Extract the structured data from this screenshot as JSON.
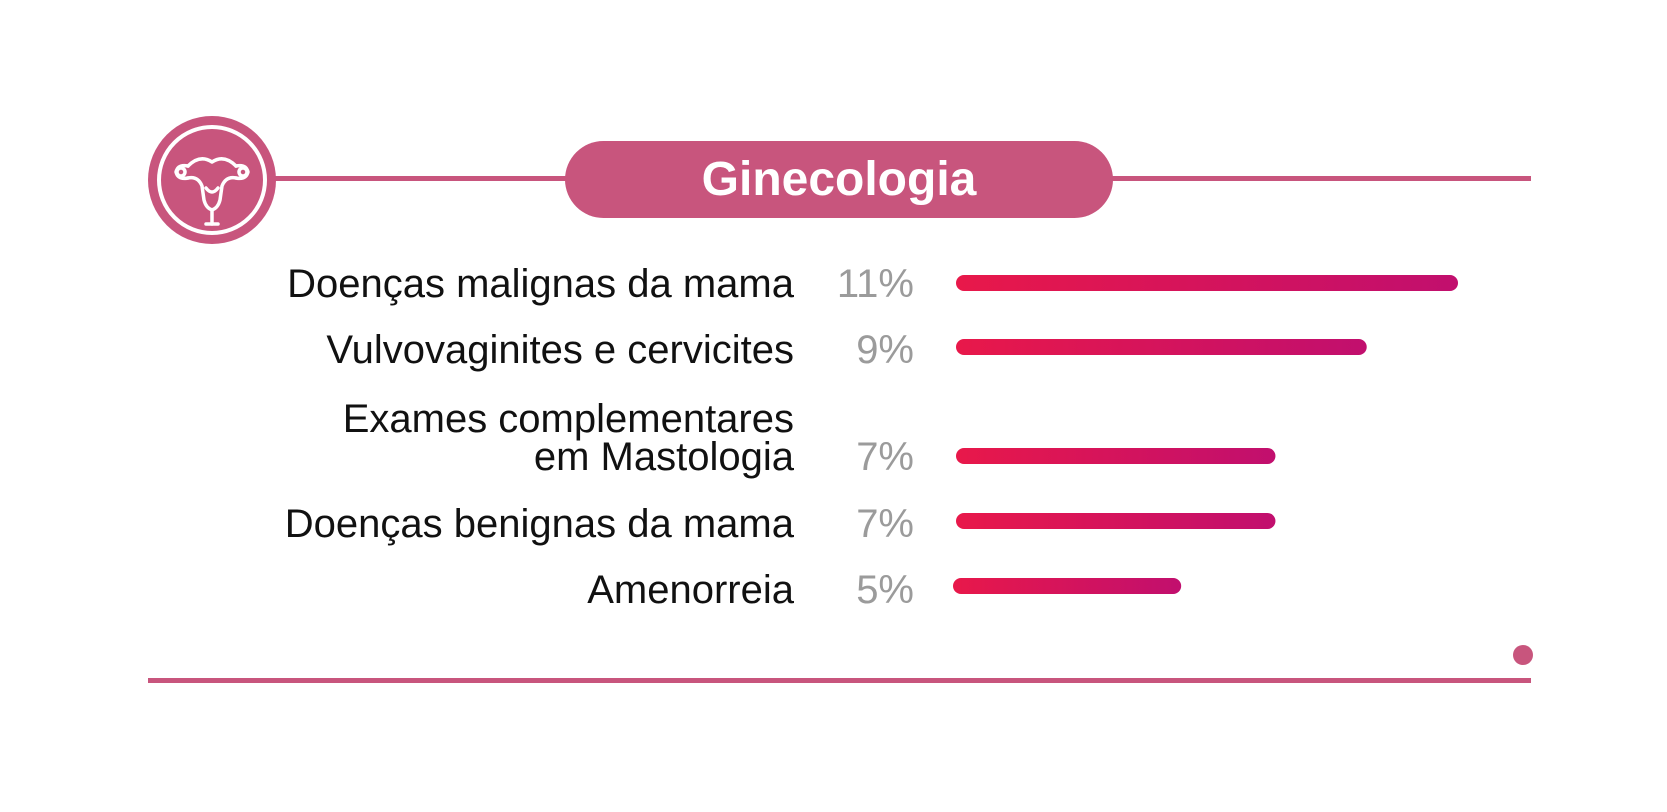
{
  "header": {
    "title": "Ginecologia",
    "icon": "uterus-icon"
  },
  "colors": {
    "accent": "#c8557d",
    "bar_start": "#e8184a",
    "bar_end": "#c10f6e",
    "label": "#111111",
    "value": "#9b9b9b"
  },
  "chart_data": {
    "type": "bar",
    "orientation": "horizontal",
    "title": "Ginecologia",
    "categories": [
      "Doenças malignas da mama",
      "Vulvovaginites e cervicites",
      "Exames complementares em Mastologia",
      "Doenças benignas da mama",
      "Amenorreia"
    ],
    "values": [
      11,
      9,
      7,
      7,
      5
    ],
    "value_labels": [
      "11%",
      "9%",
      "7%",
      "7%",
      "5%"
    ],
    "unit": "%",
    "xlim": [
      0,
      11
    ]
  },
  "rows": [
    {
      "label_lines": [
        "Doenças malignas da mama"
      ],
      "value_label": "11%"
    },
    {
      "label_lines": [
        "Vulvovaginites e cervicites"
      ],
      "value_label": "9%"
    },
    {
      "label_lines": [
        "Exames complementares",
        "em Mastologia"
      ],
      "value_label": "7%"
    },
    {
      "label_lines": [
        "Doenças benignas da mama"
      ],
      "value_label": "7%"
    },
    {
      "label_lines": [
        "Amenorreia"
      ],
      "value_label": "5%"
    }
  ]
}
